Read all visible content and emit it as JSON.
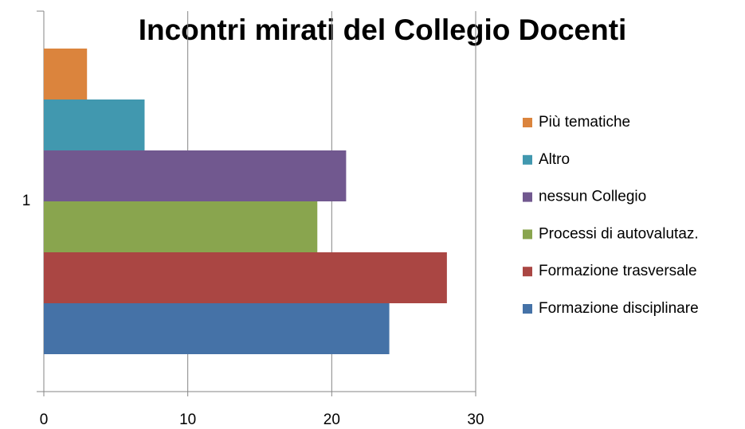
{
  "chart_data": {
    "type": "bar",
    "orientation": "horizontal",
    "title": "Incontri mirati del Collegio Docenti",
    "categories": [
      "1"
    ],
    "series": [
      {
        "name": "Formazione disciplinare",
        "color": "#4572a7",
        "values": [
          24
        ]
      },
      {
        "name": "Formazione trasversale",
        "color": "#aa4643",
        "values": [
          28
        ]
      },
      {
        "name": "Processi di autovalutaz.",
        "color": "#89a54e",
        "values": [
          19
        ]
      },
      {
        "name": "nessun Collegio",
        "color": "#71588f",
        "values": [
          21
        ]
      },
      {
        "name": "Altro",
        "color": "#4198af",
        "values": [
          7
        ]
      },
      {
        "name": "Più tematiche",
        "color": "#db843d",
        "values": [
          3
        ]
      }
    ],
    "xlim": [
      0,
      30
    ],
    "xticks": [
      0,
      10,
      20,
      30
    ],
    "grid": true,
    "legend": "right"
  }
}
